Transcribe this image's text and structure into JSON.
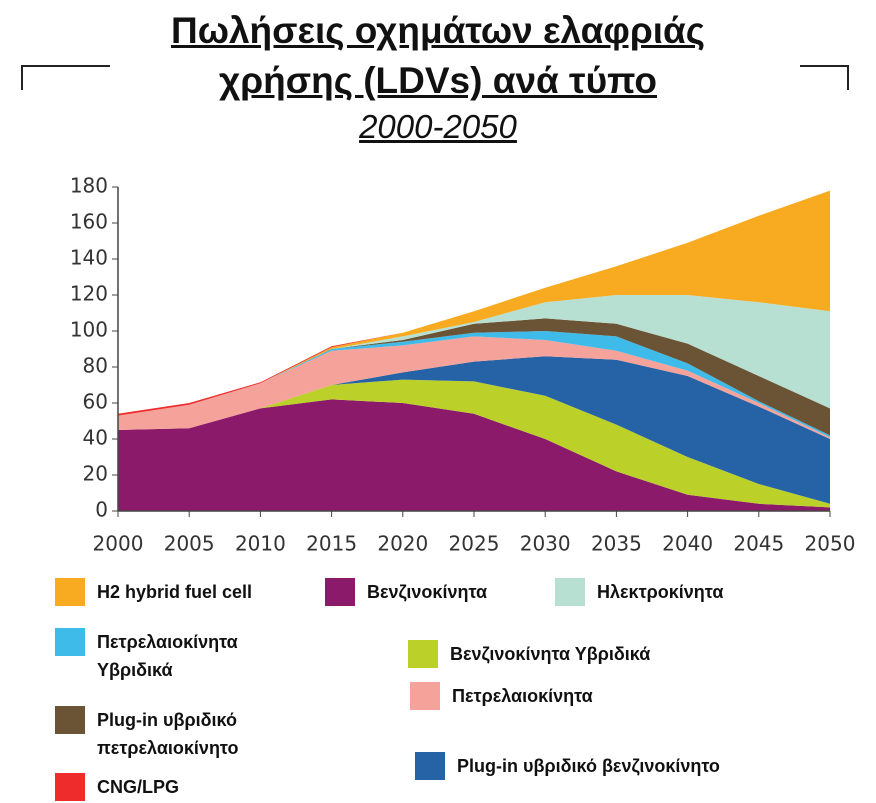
{
  "chart_data": {
    "type": "stacked_area",
    "title": "Πωλήσεις οχημάτων ελαφριάς χρήσης (LDVs) ανά τύπο",
    "subtitle": "2000-2050",
    "x": [
      2000,
      2005,
      2010,
      2015,
      2020,
      2025,
      2030,
      2035,
      2040,
      2045,
      2050
    ],
    "xlim": [
      2000,
      2050
    ],
    "xticks": [
      2000,
      2005,
      2010,
      2015,
      2020,
      2025,
      2030,
      2035,
      2040,
      2045,
      2050
    ],
    "ylim": [
      0,
      180
    ],
    "yticks": [
      0,
      20,
      40,
      60,
      80,
      100,
      120,
      140,
      160,
      180
    ],
    "series": [
      {
        "name": "Βενζινοκίνητα",
        "color": "#8b1a6b",
        "values": [
          45,
          46,
          57,
          62,
          60,
          54,
          40,
          22,
          9,
          4,
          2
        ]
      },
      {
        "name": "Βενζινοκίνητα Υβριδικά",
        "color": "#bcd02a",
        "values": [
          0,
          0,
          0,
          8,
          13,
          18,
          24,
          26,
          21,
          11,
          2
        ]
      },
      {
        "name": "Plug-in υβριδικό βενζινοκίνητο",
        "color": "#2563a6",
        "values": [
          0,
          0,
          0,
          0,
          4,
          11,
          22,
          36,
          45,
          43,
          36
        ]
      },
      {
        "name": "Πετρελαιοκίνητα",
        "color": "#f4a29a",
        "values": [
          8,
          13,
          14,
          19,
          15,
          14,
          9,
          5,
          3,
          2,
          1
        ]
      },
      {
        "name": "Πετρελαιοκίνητα Υβριδικά",
        "color": "#3fbbea",
        "values": [
          0,
          0,
          0,
          1,
          2,
          2,
          5,
          8,
          4,
          1,
          1
        ]
      },
      {
        "name": "Plug-in υβριδικό πετρελαιοκίνητο",
        "color": "#6b5436",
        "values": [
          0,
          0,
          0,
          0,
          1,
          5,
          7,
          7,
          11,
          14,
          15
        ]
      },
      {
        "name": "Ηλεκτροκίνητα",
        "color": "#b7e0d2",
        "values": [
          0,
          0,
          0,
          0,
          2,
          1,
          9,
          16,
          27,
          41,
          54
        ]
      },
      {
        "name": "H2 hybrid fuel cell",
        "color": "#f8aa20",
        "values": [
          0,
          0,
          0,
          1,
          2,
          6,
          8,
          16,
          29,
          48,
          67
        ]
      },
      {
        "name": "CNG/LPG",
        "color": "#ee2c2c",
        "values": [
          1,
          1,
          0.5,
          0.5,
          0,
          0,
          0,
          0,
          0,
          0,
          0
        ]
      }
    ]
  }
}
